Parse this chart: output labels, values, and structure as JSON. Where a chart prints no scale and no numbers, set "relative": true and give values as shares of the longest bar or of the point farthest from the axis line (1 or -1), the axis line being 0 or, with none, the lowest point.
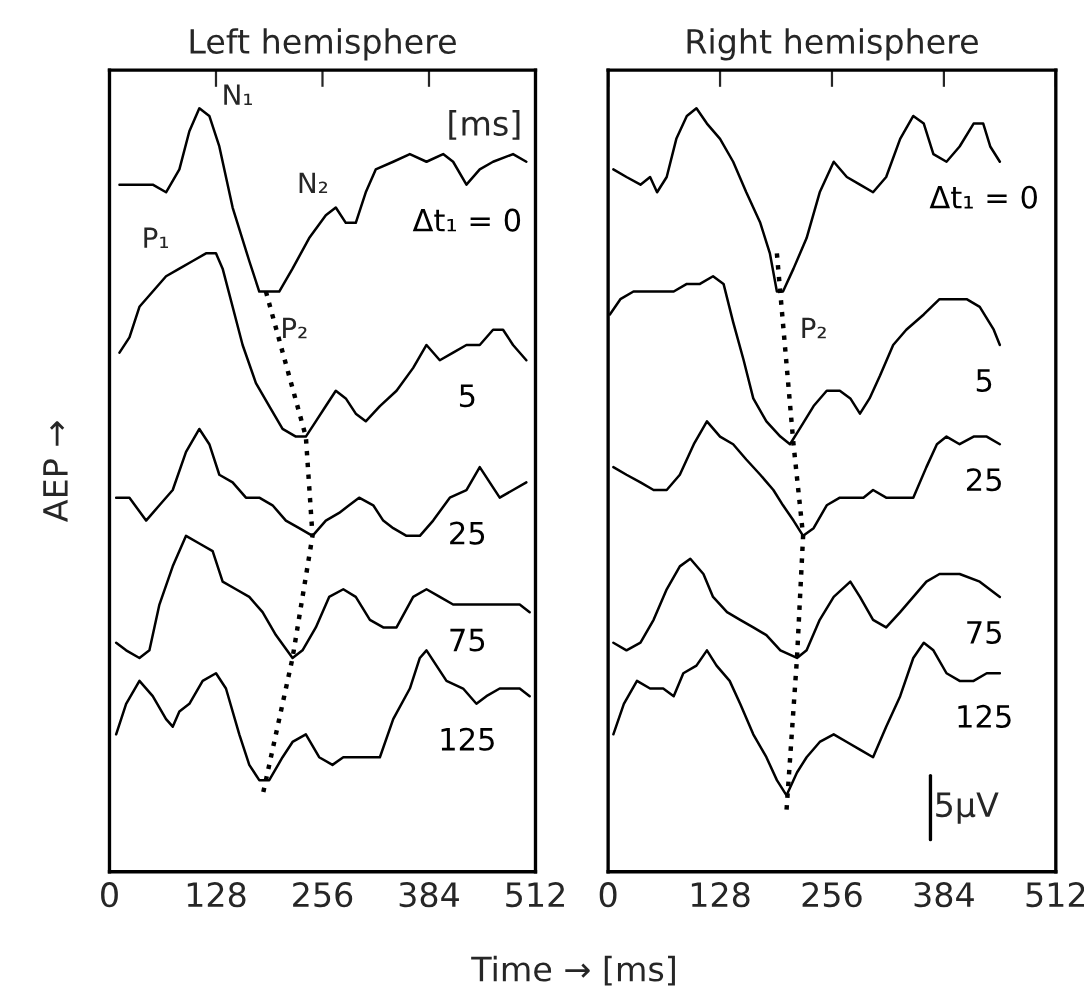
{
  "chart_data": [
    {
      "type": "line",
      "title": "Left hemisphere",
      "xlabel": "Time → [ms]",
      "ylabel": "AEP →",
      "relative": true,
      "xlim": [
        0,
        512
      ],
      "xticks": [
        0,
        128,
        256,
        384,
        512
      ],
      "grid": false,
      "marker": "none",
      "annotations": [
        "[ms]",
        {
          "text": "N₁",
          "x": 108,
          "y": 1.0
        },
        {
          "text": "P₁",
          "x": 52,
          "y": 0.9
        },
        {
          "text": "N₂",
          "x": 272,
          "y": 0.87
        },
        {
          "text": "P₂",
          "x": 192,
          "y": 0.76
        }
      ],
      "series": [
        {
          "name": "Δt₁ = 0",
          "color": "#000000",
          "line_style": "solid",
          "x": [
            12,
            36,
            52,
            68,
            84,
            96,
            108,
            120,
            132,
            148,
            168,
            180,
            192,
            204,
            220,
            240,
            260,
            272,
            284,
            296,
            308,
            320,
            341,
            361,
            381,
            401,
            413,
            429,
            445,
            461,
            485,
            501
          ],
          "values": [
            0.9,
            0.9,
            0.9,
            0.89,
            0.92,
            0.97,
            1.0,
            0.99,
            0.95,
            0.87,
            0.8,
            0.76,
            0.76,
            0.76,
            0.79,
            0.83,
            0.86,
            0.87,
            0.85,
            0.85,
            0.89,
            0.92,
            0.93,
            0.94,
            0.93,
            0.94,
            0.93,
            0.9,
            0.92,
            0.93,
            0.94,
            0.93
          ]
        },
        {
          "name": "5",
          "color": "#000000",
          "line_style": "solid",
          "x": [
            12,
            24,
            36,
            52,
            68,
            84,
            100,
            116,
            128,
            136,
            148,
            160,
            176,
            192,
            208,
            224,
            236,
            248,
            260,
            272,
            284,
            296,
            308,
            325,
            345,
            365,
            381,
            397,
            413,
            429,
            445,
            461,
            473,
            485,
            501
          ],
          "values": [
            0.68,
            0.7,
            0.74,
            0.76,
            0.78,
            0.79,
            0.8,
            0.81,
            0.81,
            0.79,
            0.74,
            0.69,
            0.64,
            0.61,
            0.58,
            0.57,
            0.57,
            0.59,
            0.61,
            0.63,
            0.62,
            0.6,
            0.59,
            0.61,
            0.63,
            0.66,
            0.69,
            0.67,
            0.68,
            0.69,
            0.69,
            0.71,
            0.71,
            0.69,
            0.67
          ]
        },
        {
          "name": "25",
          "color": "#000000",
          "line_style": "solid",
          "x": [
            8,
            24,
            44,
            60,
            76,
            92,
            108,
            120,
            132,
            148,
            164,
            180,
            196,
            212,
            228,
            244,
            260,
            276,
            288,
            300,
            317,
            329,
            341,
            357,
            373,
            389,
            409,
            429,
            445,
            457,
            469,
            485,
            501
          ],
          "values": [
            0.49,
            0.49,
            0.46,
            0.48,
            0.5,
            0.55,
            0.58,
            0.56,
            0.52,
            0.51,
            0.49,
            0.49,
            0.48,
            0.46,
            0.45,
            0.44,
            0.46,
            0.47,
            0.48,
            0.49,
            0.48,
            0.46,
            0.45,
            0.44,
            0.44,
            0.46,
            0.49,
            0.5,
            0.53,
            0.51,
            0.49,
            0.5,
            0.51
          ]
        },
        {
          "name": "75",
          "color": "#000000",
          "line_style": "solid",
          "x": [
            8,
            20,
            36,
            48,
            60,
            76,
            92,
            108,
            124,
            136,
            152,
            168,
            184,
            200,
            220,
            232,
            248,
            264,
            281,
            296,
            313,
            329,
            345,
            365,
            381,
            397,
            413,
            445,
            477,
            493,
            505
          ],
          "values": [
            0.3,
            0.29,
            0.28,
            0.29,
            0.35,
            0.4,
            0.44,
            0.43,
            0.42,
            0.38,
            0.37,
            0.36,
            0.34,
            0.31,
            0.28,
            0.29,
            0.32,
            0.36,
            0.37,
            0.36,
            0.33,
            0.32,
            0.32,
            0.36,
            0.37,
            0.36,
            0.35,
            0.35,
            0.35,
            0.35,
            0.34
          ]
        },
        {
          "name": "125",
          "color": "#000000",
          "line_style": "solid",
          "x": [
            8,
            20,
            36,
            52,
            68,
            76,
            84,
            96,
            112,
            128,
            140,
            156,
            168,
            180,
            192,
            208,
            220,
            236,
            252,
            268,
            281,
            293,
            308,
            325,
            341,
            361,
            373,
            381,
            393,
            405,
            425,
            441,
            453,
            469,
            493,
            505
          ],
          "values": [
            0.18,
            0.22,
            0.25,
            0.23,
            0.2,
            0.19,
            0.21,
            0.22,
            0.25,
            0.26,
            0.24,
            0.18,
            0.14,
            0.12,
            0.12,
            0.15,
            0.17,
            0.18,
            0.15,
            0.14,
            0.15,
            0.15,
            0.15,
            0.15,
            0.2,
            0.24,
            0.28,
            0.29,
            0.27,
            0.25,
            0.24,
            0.22,
            0.23,
            0.24,
            0.24,
            0.23
          ]
        },
        {
          "color": "#000000",
          "line_style": "dotted",
          "x": [
            188,
            236,
            244,
            220,
            184
          ],
          "values": [
            0.76,
            0.57,
            0.44,
            0.28,
            0.1
          ]
        }
      ]
    },
    {
      "type": "line",
      "title": "Right hemisphere",
      "relative": true,
      "xlim": [
        0,
        512
      ],
      "xticks": [
        0,
        128,
        256,
        384,
        512
      ],
      "grid": false,
      "marker": "none",
      "annotations": [
        {
          "text": "P₂",
          "x": 200,
          "y": 0.76
        },
        "5µV"
      ],
      "series": [
        {
          "name": "Δt₁ = 0",
          "color": "#000000",
          "line_style": "solid",
          "x": [
            6,
            21,
            37,
            48,
            56,
            67,
            78,
            90,
            101,
            113,
            128,
            143,
            158,
            174,
            185,
            193,
            200,
            212,
            227,
            242,
            258,
            273,
            288,
            303,
            318,
            334,
            349,
            361,
            372,
            387,
            402,
            418,
            429,
            437,
            448
          ],
          "values": [
            0.92,
            0.91,
            0.9,
            0.91,
            0.89,
            0.91,
            0.96,
            0.99,
            1.0,
            0.98,
            0.96,
            0.93,
            0.89,
            0.85,
            0.81,
            0.76,
            0.76,
            0.79,
            0.83,
            0.89,
            0.93,
            0.91,
            0.9,
            0.89,
            0.91,
            0.96,
            0.99,
            0.98,
            0.94,
            0.93,
            0.95,
            0.98,
            0.98,
            0.95,
            0.93
          ]
        },
        {
          "name": "5",
          "color": "#000000",
          "line_style": "solid",
          "x": [
            2,
            14,
            29,
            44,
            59,
            75,
            90,
            105,
            120,
            132,
            143,
            155,
            166,
            181,
            197,
            208,
            219,
            235,
            250,
            265,
            277,
            288,
            299,
            311,
            326,
            341,
            361,
            379,
            395,
            410,
            425,
            441,
            448
          ],
          "values": [
            0.73,
            0.75,
            0.76,
            0.76,
            0.76,
            0.76,
            0.77,
            0.77,
            0.78,
            0.77,
            0.72,
            0.67,
            0.62,
            0.59,
            0.57,
            0.56,
            0.58,
            0.61,
            0.63,
            0.63,
            0.62,
            0.6,
            0.62,
            0.65,
            0.69,
            0.71,
            0.73,
            0.75,
            0.75,
            0.75,
            0.74,
            0.71,
            0.69
          ]
        },
        {
          "name": "25",
          "color": "#000000",
          "line_style": "solid",
          "x": [
            6,
            21,
            37,
            52,
            67,
            82,
            98,
            113,
            128,
            143,
            158,
            174,
            189,
            200,
            212,
            223,
            235,
            250,
            265,
            280,
            292,
            303,
            318,
            334,
            349,
            364,
            376,
            387,
            402,
            418,
            433,
            448
          ],
          "values": [
            0.53,
            0.52,
            0.51,
            0.5,
            0.5,
            0.52,
            0.56,
            0.59,
            0.57,
            0.56,
            0.54,
            0.52,
            0.5,
            0.48,
            0.46,
            0.44,
            0.45,
            0.48,
            0.49,
            0.49,
            0.49,
            0.5,
            0.49,
            0.49,
            0.49,
            0.53,
            0.56,
            0.57,
            0.56,
            0.57,
            0.57,
            0.56
          ]
        },
        {
          "name": "75",
          "color": "#000000",
          "line_style": "solid",
          "x": [
            6,
            21,
            37,
            52,
            67,
            82,
            94,
            109,
            120,
            136,
            151,
            166,
            181,
            197,
            216,
            227,
            242,
            258,
            277,
            288,
            303,
            318,
            334,
            349,
            364,
            379,
            402,
            425,
            448
          ],
          "values": [
            0.3,
            0.29,
            0.3,
            0.33,
            0.37,
            0.4,
            0.41,
            0.39,
            0.36,
            0.34,
            0.33,
            0.32,
            0.31,
            0.29,
            0.28,
            0.29,
            0.33,
            0.36,
            0.38,
            0.36,
            0.33,
            0.32,
            0.34,
            0.36,
            0.38,
            0.39,
            0.39,
            0.38,
            0.36
          ]
        },
        {
          "name": "125",
          "color": "#000000",
          "line_style": "solid",
          "x": [
            6,
            18,
            33,
            48,
            63,
            75,
            86,
            101,
            113,
            124,
            139,
            151,
            166,
            181,
            193,
            204,
            216,
            227,
            242,
            258,
            273,
            288,
            303,
            318,
            334,
            349,
            361,
            372,
            387,
            402,
            418,
            433,
            448
          ],
          "values": [
            0.18,
            0.22,
            0.25,
            0.24,
            0.24,
            0.23,
            0.26,
            0.27,
            0.29,
            0.27,
            0.25,
            0.22,
            0.18,
            0.15,
            0.12,
            0.1,
            0.13,
            0.15,
            0.17,
            0.18,
            0.17,
            0.16,
            0.15,
            0.19,
            0.23,
            0.28,
            0.3,
            0.29,
            0.26,
            0.25,
            0.25,
            0.26,
            0.26
          ]
        },
        {
          "color": "#000000",
          "line_style": "dotted",
          "x": [
            193,
            212,
            223,
            216,
            204
          ],
          "values": [
            0.81,
            0.56,
            0.44,
            0.28,
            0.08
          ]
        }
      ]
    }
  ]
}
